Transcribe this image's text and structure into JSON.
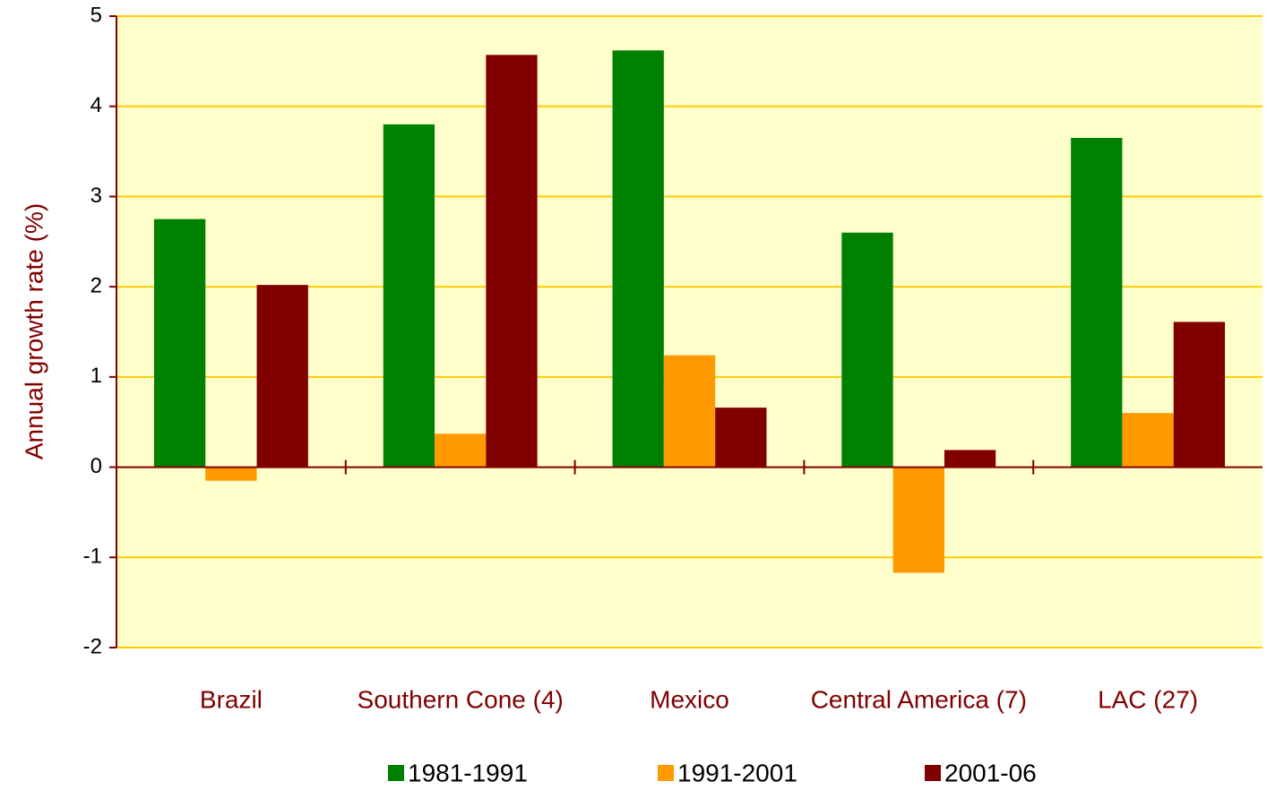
{
  "chart_data": {
    "type": "bar",
    "title": "",
    "xlabel": "",
    "ylabel": "Annual growth rate (%)",
    "ylim": [
      -2,
      5
    ],
    "yticks": [
      -2,
      -1,
      0,
      1,
      2,
      3,
      4,
      5
    ],
    "grid": true,
    "legend_position": "bottom",
    "categories": [
      "Brazil",
      "Southern Cone (4)",
      "Mexico",
      "Central America (7)",
      "LAC (27)"
    ],
    "series": [
      {
        "name": "1981-1991",
        "color": "#008000",
        "values": [
          2.75,
          3.8,
          4.62,
          2.6,
          3.65
        ]
      },
      {
        "name": "1991-2001",
        "color": "#FF9900",
        "values": [
          -0.15,
          0.37,
          1.24,
          -1.17,
          0.6
        ]
      },
      {
        "name": "2001-06",
        "color": "#800000",
        "values": [
          2.02,
          4.57,
          0.66,
          0.19,
          1.61
        ]
      }
    ],
    "colors": {
      "plot_background": "#FFFFCC",
      "gridline": "#FFCC00",
      "axis_line": "#800000",
      "label_text": "#800000"
    }
  }
}
